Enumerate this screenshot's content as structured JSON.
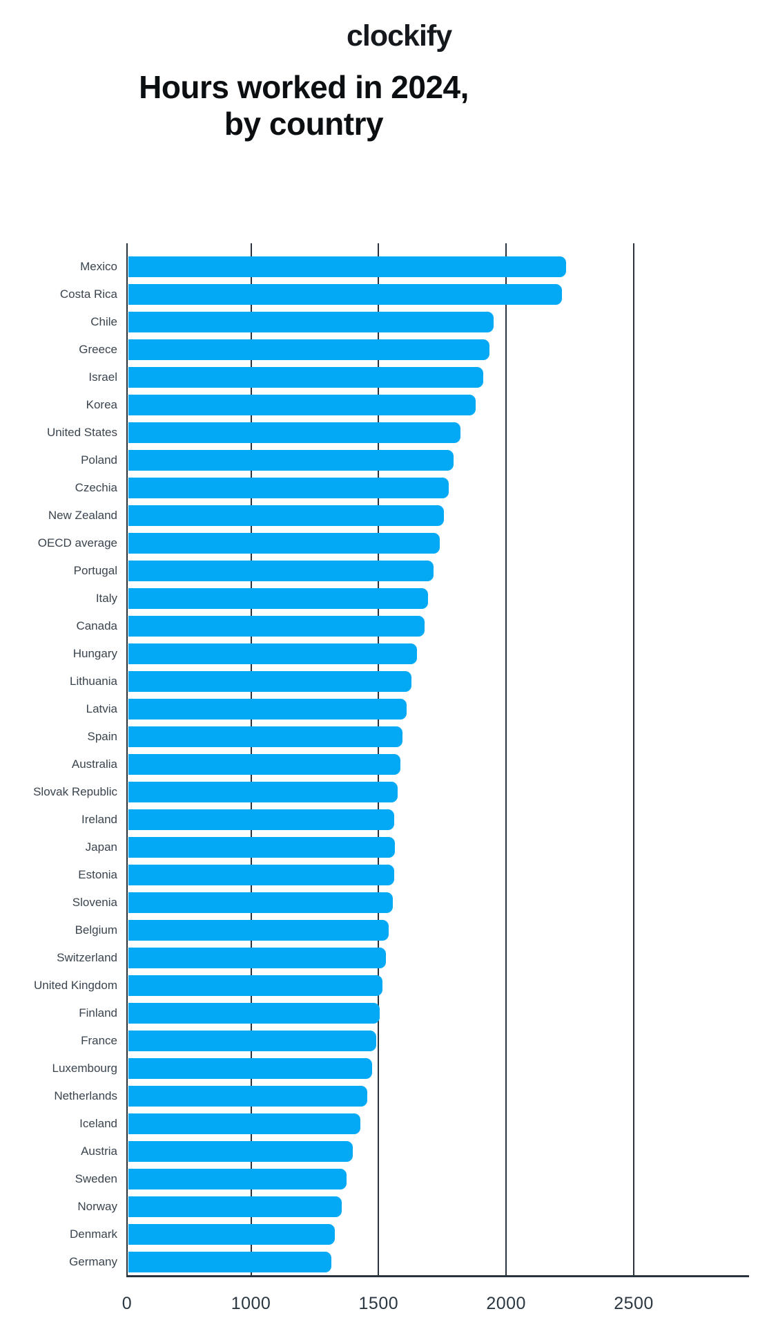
{
  "logo": {
    "wordmark": "clockify",
    "tile_color": "#2BA9F2",
    "glyph_color": "#ffffff",
    "wordmark_color": "#15191d"
  },
  "title": {
    "line1": "Hours worked in 2024,",
    "line2": "by country"
  },
  "chart_data": {
    "type": "bar",
    "orientation": "horizontal",
    "title": "Hours worked in 2024, by country",
    "xlabel": "",
    "ylabel": "",
    "categories": [
      "Mexico",
      "Costa Rica",
      "Chile",
      "Greece",
      "Israel",
      "Korea",
      "United States",
      "Poland",
      "Czechia",
      "New Zealand",
      "OECD average",
      "Portugal",
      "Italy",
      "Canada",
      "Hungary",
      "Lithuania",
      "Latvia",
      "Spain",
      "Australia",
      "Slovak Republic",
      "Ireland",
      "Japan",
      "Estonia",
      "Slovenia",
      "Belgium",
      "Switzerland",
      "United Kingdom",
      "Finland",
      "France",
      "Luxembourg",
      "Netherlands",
      "Iceland",
      "Austria",
      "Sweden",
      "Norway",
      "Denmark",
      "Germany"
    ],
    "values": [
      2235,
      2220,
      1950,
      1935,
      1910,
      1880,
      1820,
      1795,
      1775,
      1755,
      1740,
      1715,
      1695,
      1680,
      1650,
      1630,
      1610,
      1595,
      1585,
      1575,
      1560,
      1565,
      1560,
      1555,
      1540,
      1530,
      1515,
      1505,
      1490,
      1475,
      1455,
      1430,
      1400,
      1375,
      1355,
      1330,
      1315
    ],
    "x_ticks": [
      0,
      1000,
      1500,
      2000,
      2500
    ],
    "x_tick_labels": [
      "0",
      "1000",
      "1500",
      "2000",
      "2500"
    ],
    "xlim": [
      0,
      2900
    ],
    "axis_note": "tick marks 0,1000,1500,2000,2500 are evenly spaced (0-1000 segment compressed 2x)",
    "grid": "vertical gridlines at each x tick, no top or right border",
    "legend": "none",
    "bar_color": "#03A9F4",
    "axis_color": "#28333d",
    "label_color": "#3a444e",
    "tick_label_color": "#2b3741"
  }
}
